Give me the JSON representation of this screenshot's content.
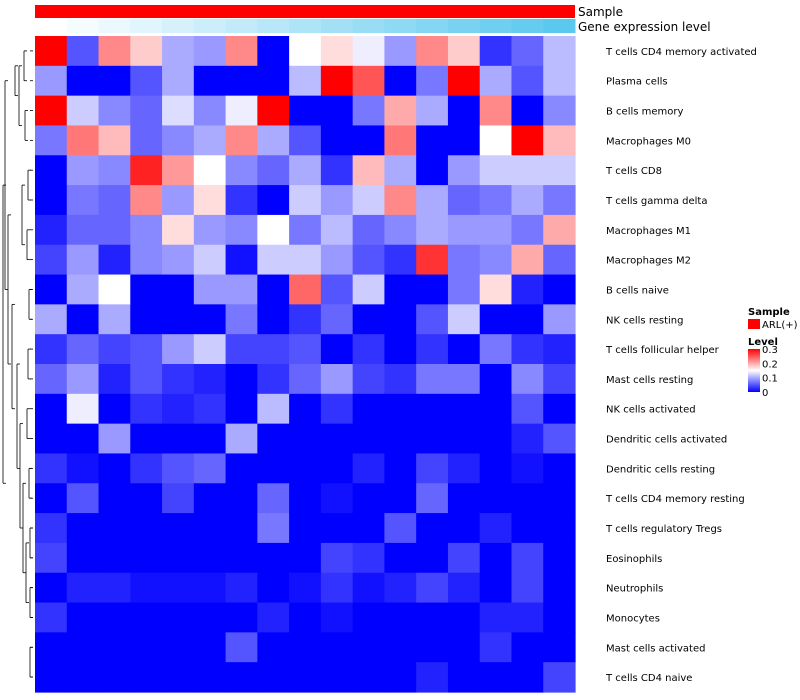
{
  "chart_data": {
    "type": "heatmap",
    "annotations": [
      {
        "name": "Sample",
        "color": "#ff0000"
      },
      {
        "name": "Gene expression level",
        "gradient": [
          "#ffffff",
          "#5bc8ee"
        ]
      }
    ],
    "rows": [
      "T cells CD4 memory activated",
      "Plasma cells",
      "B cells memory",
      "Macrophages M0",
      "T cells CD8",
      "T cells gamma delta",
      "Macrophages M1",
      "Macrophages M2",
      "B cells naive",
      "NK cells resting",
      "T cells follicular helper",
      "Mast cells resting",
      "NK cells activated",
      "Dendritic cells activated",
      "Dendritic cells resting",
      "T cells CD4 memory resting",
      "T cells regulatory  Tregs",
      "Eosinophils",
      "Neutrophils",
      "Monocytes",
      "Mast cells activated",
      "T cells CD4 naive"
    ],
    "values": [
      [
        0.3,
        0.05,
        0.22,
        0.18,
        0.1,
        0.09,
        0.22,
        0.0,
        0.15,
        0.17,
        0.14,
        0.09,
        0.22,
        0.18,
        0.03,
        0.06,
        0.11
      ],
      [
        0.09,
        0.0,
        0.0,
        0.05,
        0.1,
        0.0,
        0.0,
        0.0,
        0.11,
        0.3,
        0.25,
        0.0,
        0.07,
        0.3,
        0.1,
        0.05,
        0.11
      ],
      [
        0.3,
        0.12,
        0.08,
        0.06,
        0.13,
        0.08,
        0.14,
        0.3,
        0.0,
        0.0,
        0.07,
        0.2,
        0.1,
        0.0,
        0.22,
        0.0,
        0.08
      ],
      [
        0.07,
        0.23,
        0.19,
        0.06,
        0.08,
        0.1,
        0.22,
        0.1,
        0.05,
        0.0,
        0.0,
        0.23,
        0.0,
        0.0,
        0.15,
        0.3,
        0.19
      ],
      [
        0.0,
        0.09,
        0.08,
        0.28,
        0.21,
        0.15,
        0.08,
        0.06,
        0.1,
        0.03,
        0.19,
        0.1,
        0.0,
        0.09,
        0.12,
        0.12,
        0.12
      ],
      [
        0.0,
        0.07,
        0.06,
        0.22,
        0.09,
        0.17,
        0.03,
        0.0,
        0.12,
        0.09,
        0.12,
        0.22,
        0.1,
        0.06,
        0.07,
        0.1,
        0.07
      ],
      [
        0.02,
        0.06,
        0.06,
        0.08,
        0.17,
        0.09,
        0.08,
        0.15,
        0.07,
        0.11,
        0.06,
        0.08,
        0.1,
        0.09,
        0.09,
        0.07,
        0.2
      ],
      [
        0.04,
        0.09,
        0.02,
        0.08,
        0.09,
        0.12,
        0.01,
        0.12,
        0.12,
        0.09,
        0.05,
        0.03,
        0.27,
        0.07,
        0.08,
        0.2,
        0.06
      ],
      [
        0.0,
        0.1,
        0.15,
        0.0,
        0.0,
        0.09,
        0.09,
        0.0,
        0.24,
        0.05,
        0.12,
        0.0,
        0.0,
        0.07,
        0.17,
        0.02,
        0.0
      ],
      [
        0.1,
        0.0,
        0.1,
        0.0,
        0.0,
        0.0,
        0.07,
        0.0,
        0.03,
        0.06,
        0.0,
        0.0,
        0.05,
        0.12,
        0.0,
        0.0,
        0.09
      ],
      [
        0.03,
        0.06,
        0.04,
        0.05,
        0.09,
        0.12,
        0.04,
        0.04,
        0.05,
        0.0,
        0.03,
        0.0,
        0.03,
        0.0,
        0.07,
        0.03,
        0.02
      ],
      [
        0.06,
        0.09,
        0.02,
        0.05,
        0.03,
        0.02,
        0.0,
        0.03,
        0.06,
        0.09,
        0.04,
        0.03,
        0.07,
        0.07,
        0.0,
        0.08,
        0.04
      ],
      [
        0.0,
        0.14,
        0.0,
        0.03,
        0.02,
        0.03,
        0.0,
        0.11,
        0.0,
        0.03,
        0.0,
        0.0,
        0.0,
        0.0,
        0.0,
        0.05,
        0.0
      ],
      [
        0.0,
        0.0,
        0.09,
        0.0,
        0.0,
        0.0,
        0.1,
        0.0,
        0.0,
        0.0,
        0.0,
        0.0,
        0.0,
        0.0,
        0.0,
        0.02,
        0.05
      ],
      [
        0.03,
        0.01,
        0.0,
        0.03,
        0.05,
        0.06,
        0.0,
        0.0,
        0.0,
        0.0,
        0.02,
        0.0,
        0.04,
        0.02,
        0.0,
        0.01,
        0.0
      ],
      [
        0.0,
        0.05,
        0.0,
        0.0,
        0.04,
        0.0,
        0.0,
        0.06,
        0.0,
        0.01,
        0.0,
        0.0,
        0.06,
        0.0,
        0.0,
        0.0,
        0.0
      ],
      [
        0.03,
        0.0,
        0.0,
        0.0,
        0.0,
        0.0,
        0.0,
        0.07,
        0.0,
        0.0,
        0.0,
        0.05,
        0.0,
        0.0,
        0.02,
        0.0,
        0.0
      ],
      [
        0.04,
        0.0,
        0.0,
        0.0,
        0.0,
        0.0,
        0.0,
        0.0,
        0.0,
        0.04,
        0.03,
        0.0,
        0.0,
        0.04,
        0.0,
        0.04,
        0.0
      ],
      [
        0.0,
        0.02,
        0.02,
        0.01,
        0.01,
        0.01,
        0.02,
        0.0,
        0.01,
        0.03,
        0.01,
        0.02,
        0.04,
        0.02,
        0.0,
        0.04,
        0.0
      ],
      [
        0.03,
        0.0,
        0.0,
        0.0,
        0.0,
        0.0,
        0.0,
        0.02,
        0.0,
        0.01,
        0.0,
        0.0,
        0.0,
        0.0,
        0.02,
        0.02,
        0.0
      ],
      [
        0.0,
        0.0,
        0.0,
        0.0,
        0.0,
        0.0,
        0.05,
        0.0,
        0.0,
        0.0,
        0.0,
        0.0,
        0.0,
        0.0,
        0.03,
        0.0,
        0.0
      ],
      [
        0.0,
        0.0,
        0.0,
        0.0,
        0.0,
        0.0,
        0.0,
        0.0,
        0.0,
        0.0,
        0.0,
        0.0,
        0.02,
        0.0,
        0.0,
        0.0,
        0.04
      ]
    ],
    "scale": {
      "min": 0,
      "max": 0.3,
      "colors": [
        "#0000ff",
        "#ffffff",
        "#ff0000"
      ]
    },
    "legend": {
      "sample_title": "Sample",
      "sample_item": "ARL(+)",
      "level_title": "Level",
      "ticks": [
        "0.3",
        "0.2",
        "0.1",
        "0"
      ],
      "tick_values": [
        0.3,
        0.2,
        0.1,
        0
      ]
    },
    "dendrogram": "row clustering tree on left"
  }
}
